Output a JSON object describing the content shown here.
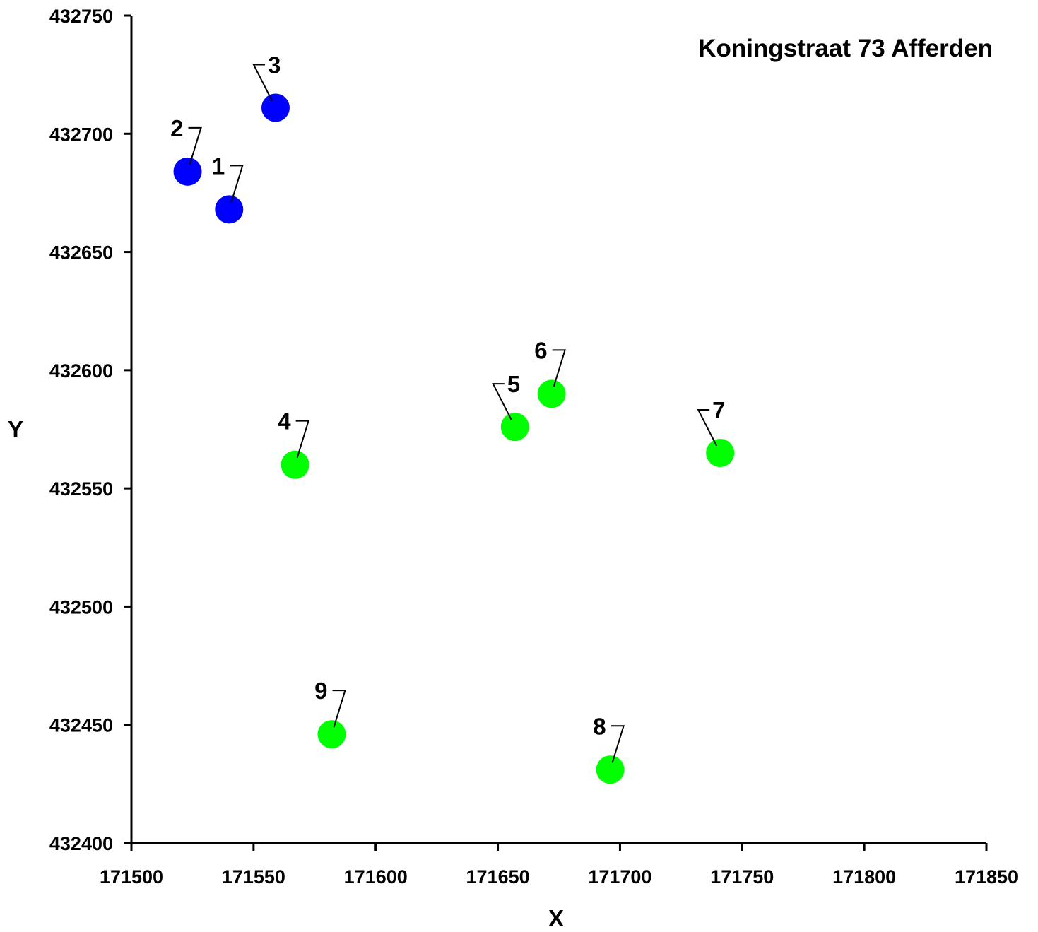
{
  "chart_data": {
    "type": "scatter",
    "title": "Koningstraat 73 Afferden",
    "xlabel": "X",
    "ylabel": "Y",
    "xlim": [
      171500,
      171850
    ],
    "ylim": [
      432400,
      432750
    ],
    "x_ticks": [
      "171500",
      "171550",
      "171600",
      "171650",
      "171700",
      "171750",
      "171800",
      "171850"
    ],
    "y_ticks": [
      "432750",
      "432700",
      "432650",
      "432600",
      "432550",
      "432500",
      "432450",
      "432400"
    ],
    "grid": false,
    "legend": "none",
    "colors": {
      "group_a": "#0000ff",
      "group_b": "#00ff00"
    },
    "points": [
      {
        "label": "1",
        "x": 171540,
        "y": 432668,
        "group": "group_a"
      },
      {
        "label": "2",
        "x": 171523,
        "y": 432684,
        "group": "group_a"
      },
      {
        "label": "3",
        "x": 171559,
        "y": 432711,
        "group": "group_a"
      },
      {
        "label": "4",
        "x": 171567,
        "y": 432560,
        "group": "group_b"
      },
      {
        "label": "5",
        "x": 171657,
        "y": 432576,
        "group": "group_b"
      },
      {
        "label": "6",
        "x": 171672,
        "y": 432590,
        "group": "group_b"
      },
      {
        "label": "7",
        "x": 171741,
        "y": 432565,
        "group": "group_b"
      },
      {
        "label": "8",
        "x": 171696,
        "y": 432431,
        "group": "group_b"
      },
      {
        "label": "9",
        "x": 171582,
        "y": 432446,
        "group": "group_b"
      }
    ]
  }
}
